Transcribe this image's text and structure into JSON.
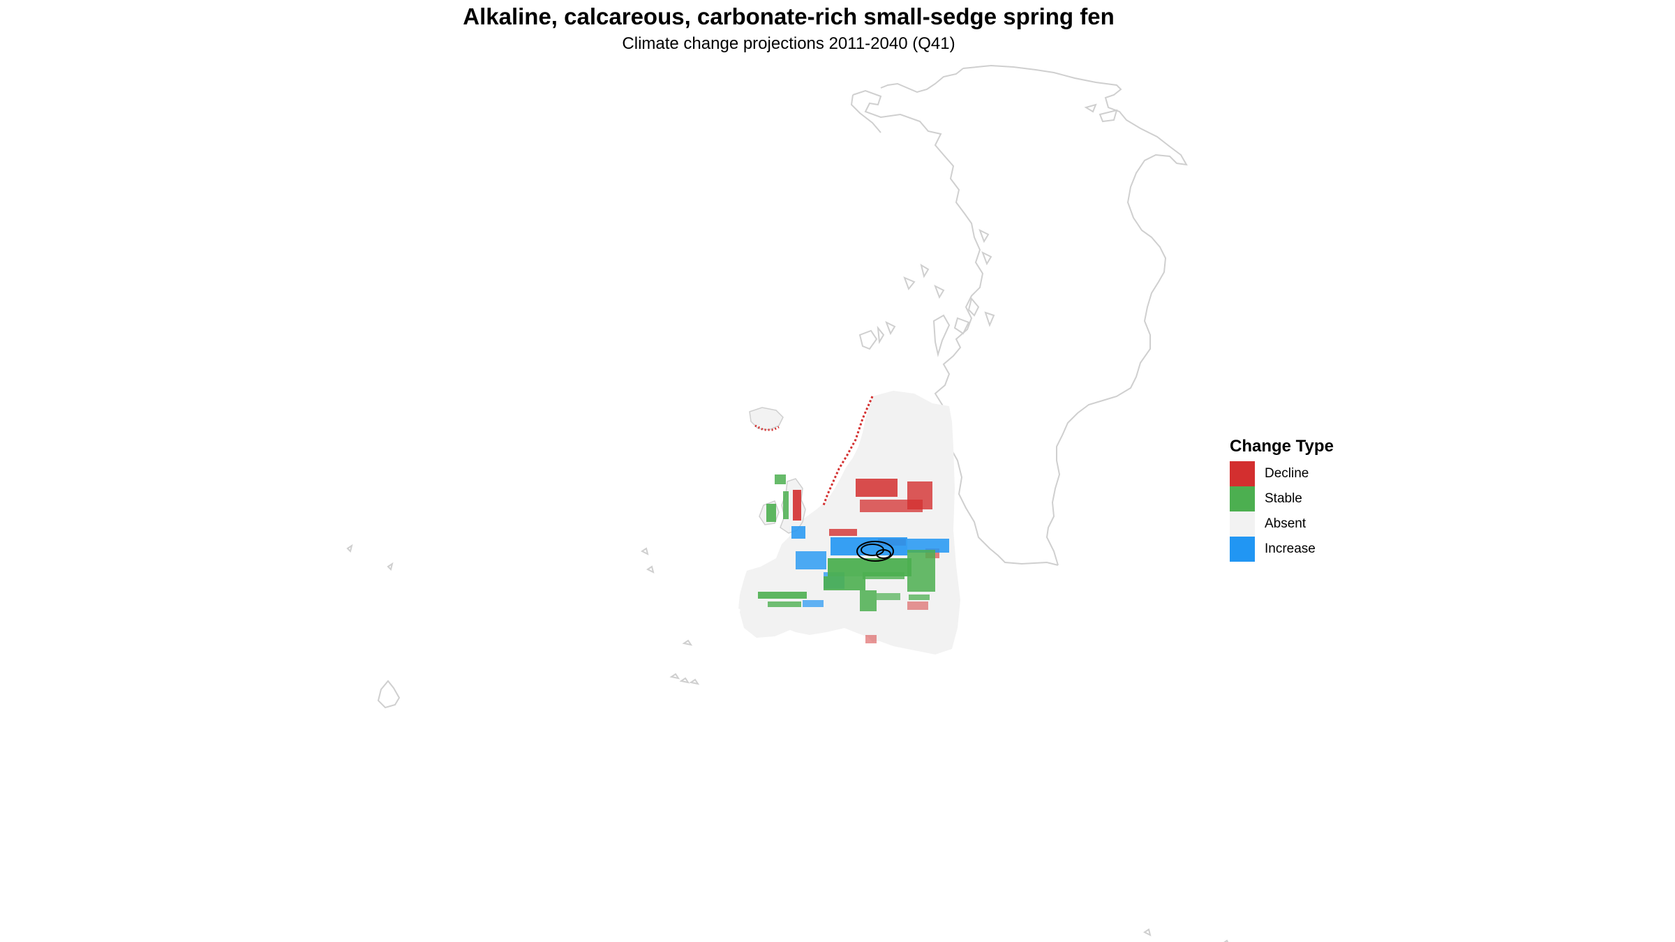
{
  "title": "Alkaline, calcareous, carbonate-rich small-sedge spring fen",
  "subtitle": "Climate change projections 2011-2040 (Q41)",
  "legend": {
    "title": "Change Type",
    "items": [
      {
        "label": "Decline",
        "color": "#d32f2f"
      },
      {
        "label": "Stable",
        "color": "#4caf50"
      },
      {
        "label": "Absent",
        "color": "#f2f2f2"
      },
      {
        "label": "Increase",
        "color": "#2196f3"
      }
    ]
  },
  "colors": {
    "coastline": "#cfcfcf",
    "land": "#f2f2f2",
    "protected_area_outline": "#000000"
  }
}
